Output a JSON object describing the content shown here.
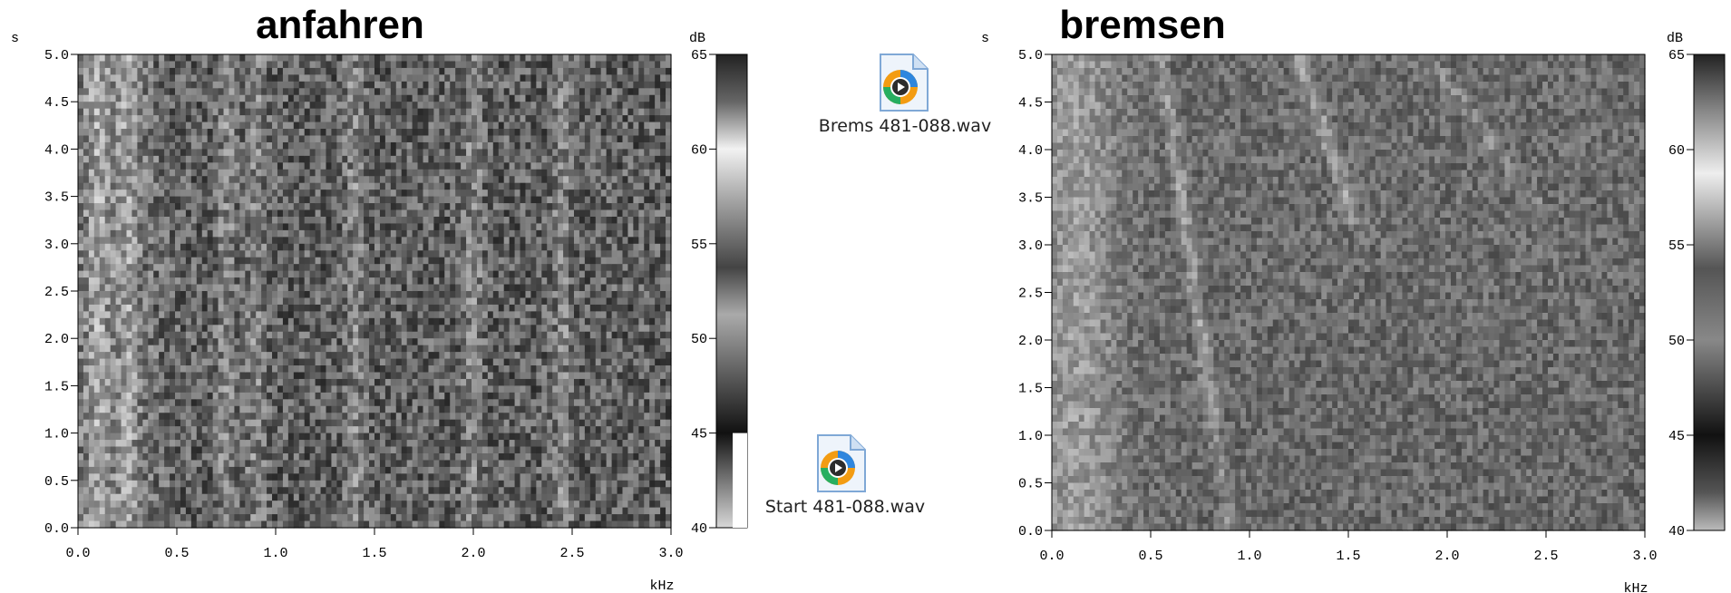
{
  "chart_data": [
    {
      "type": "heatmap",
      "title": "anfahren",
      "xlabel": "kHz",
      "ylabel": "s",
      "xlim": [
        0,
        3.0
      ],
      "ylim": [
        0,
        5.0
      ],
      "xticks": [
        "0.0",
        "0.5",
        "1.0",
        "1.5",
        "2.0",
        "2.5",
        "3.0"
      ],
      "yticks": [
        "0.0",
        "0.5",
        "1.0",
        "1.5",
        "2.0",
        "2.5",
        "3.0",
        "3.5",
        "4.0",
        "4.5",
        "5.0"
      ],
      "colorbar": {
        "label": "dB",
        "range": [
          40,
          65
        ],
        "ticks": [
          "40",
          "45",
          "50",
          "55",
          "60",
          "65"
        ]
      },
      "colormap": "grayscale",
      "bright_bands_khz": [
        0.1,
        0.25,
        0.75,
        0.9,
        1.4,
        2.0,
        2.45
      ]
    },
    {
      "type": "heatmap",
      "title": "bremsen",
      "xlabel": "kHz",
      "ylabel": "s",
      "xlim": [
        0,
        3.0
      ],
      "ylim": [
        0,
        5.0
      ],
      "xticks": [
        "0.0",
        "0.5",
        "1.0",
        "1.5",
        "2.0",
        "2.5",
        "3.0"
      ],
      "yticks": [
        "0.0",
        "0.5",
        "1.0",
        "1.5",
        "2.0",
        "2.5",
        "3.0",
        "3.5",
        "4.0",
        "4.5",
        "5.0"
      ],
      "colorbar": {
        "label": "dB",
        "range": [
          40,
          65
        ],
        "ticks": [
          "40",
          "45",
          "50",
          "55",
          "60",
          "65"
        ]
      },
      "colormap": "grayscale",
      "bright_bands_khz": [
        0.15,
        0.9,
        1.6,
        1.8
      ]
    }
  ],
  "files": [
    {
      "label": "Brems 481-088.wav",
      "icon": "media-player-icon"
    },
    {
      "label": "Start 481-088.wav",
      "icon": "media-player-icon"
    }
  ]
}
